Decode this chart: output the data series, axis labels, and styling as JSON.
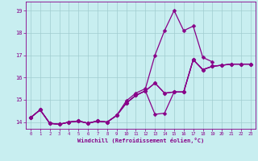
{
  "bg_color": "#c8eef0",
  "grid_color": "#a0ccd0",
  "line_color": "#880088",
  "markersize": 2.5,
  "linewidth": 0.9,
  "xlabel": "Windchill (Refroidissement éolien,°C)",
  "ylabel_ticks": [
    14,
    15,
    16,
    17,
    18,
    19
  ],
  "xlabel_ticks": [
    0,
    1,
    2,
    3,
    4,
    5,
    6,
    7,
    8,
    9,
    10,
    11,
    12,
    13,
    14,
    15,
    16,
    17,
    18,
    19,
    20,
    21,
    22,
    23
  ],
  "xlim": [
    -0.5,
    23.5
  ],
  "ylim": [
    13.7,
    19.4
  ],
  "lines": [
    [
      14.2,
      14.55,
      13.95,
      13.9,
      14.0,
      14.05,
      13.95,
      14.05,
      14.0,
      14.3,
      14.85,
      15.2,
      15.4,
      15.75,
      15.3,
      15.35,
      15.35,
      16.8,
      16.35,
      16.5,
      16.55,
      16.6,
      16.6,
      16.6
    ],
    [
      14.2,
      14.55,
      13.95,
      13.9,
      14.0,
      14.05,
      13.95,
      14.05,
      14.0,
      14.3,
      14.95,
      15.3,
      15.5,
      17.0,
      18.1,
      19.0,
      18.1,
      18.3,
      16.9,
      16.7,
      null,
      null,
      null,
      null
    ],
    [
      14.2,
      14.55,
      13.95,
      13.9,
      14.0,
      14.05,
      13.95,
      14.05,
      14.0,
      14.3,
      14.85,
      15.2,
      15.4,
      15.75,
      15.3,
      15.35,
      15.35,
      16.8,
      16.35,
      16.5,
      16.55,
      16.6,
      16.6,
      16.6
    ],
    [
      14.2,
      14.55,
      13.95,
      13.9,
      14.0,
      14.05,
      13.95,
      14.05,
      14.0,
      14.3,
      14.85,
      15.2,
      15.4,
      14.35,
      14.4,
      15.35,
      15.35,
      16.8,
      16.35,
      16.5,
      16.55,
      16.6,
      16.6,
      16.6
    ]
  ]
}
